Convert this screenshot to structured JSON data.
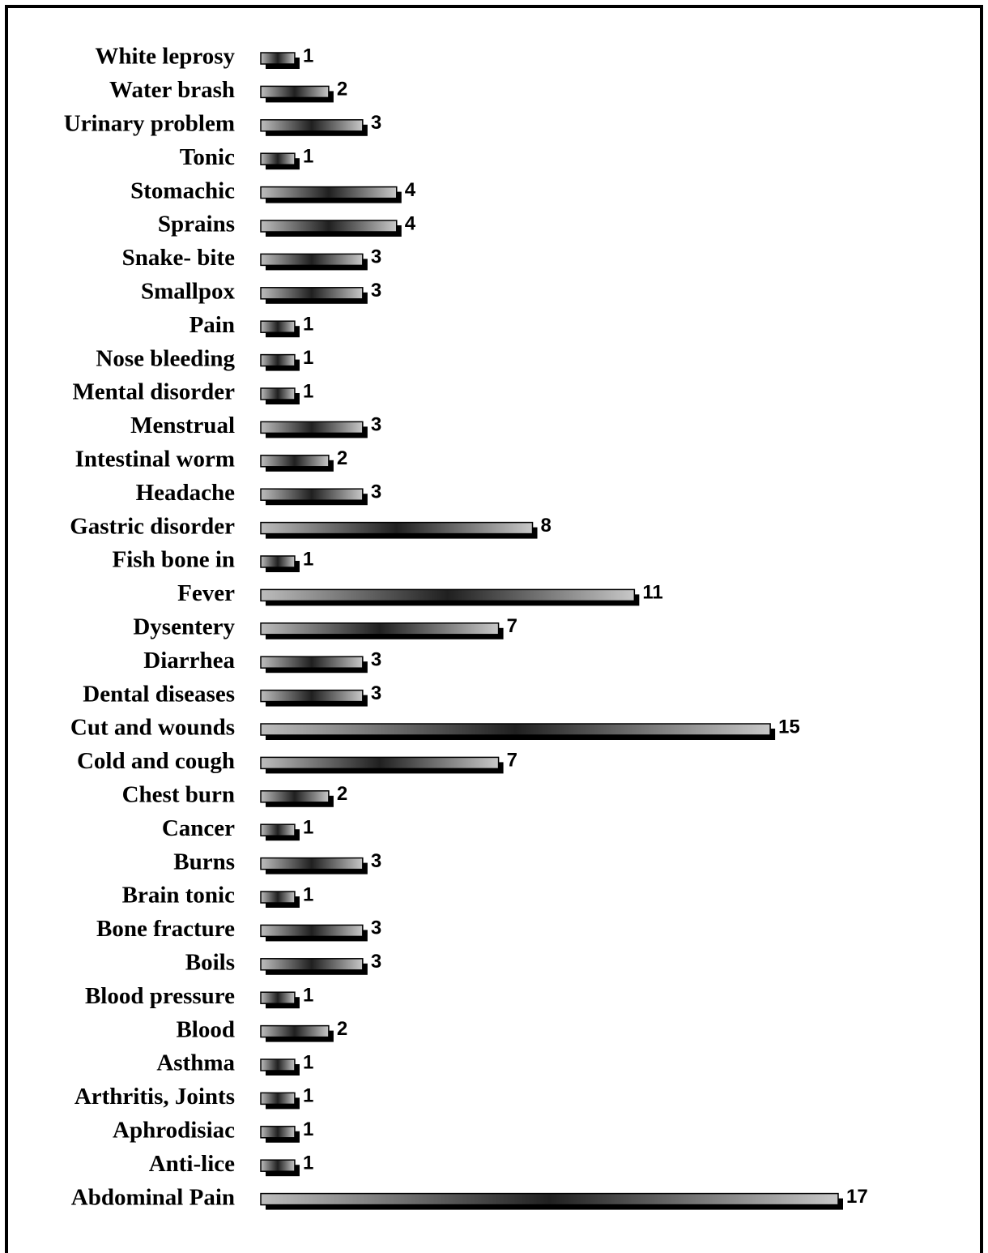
{
  "chart_data": {
    "type": "bar",
    "categories": [
      "White leprosy",
      "Water brash",
      "Urinary problem",
      "Tonic",
      "Stomachic",
      "Sprains",
      "Snake- bite",
      "Smallpox",
      "Pain",
      "Nose bleeding",
      "Mental disorder",
      "Menstrual",
      "Intestinal worm",
      "Headache",
      "Gastric disorder",
      "Fish bone in",
      "Fever",
      "Dysentery",
      "Diarrhea",
      "Dental diseases",
      "Cut and wounds",
      "Cold and cough",
      "Chest burn",
      "Cancer",
      "Burns",
      "Brain tonic",
      "Bone fracture",
      "Boils",
      "Blood pressure",
      "Blood",
      "Asthma",
      "Arthritis, Joints",
      "Aphrodisiac",
      "Anti-lice",
      "Abdominal Pain"
    ],
    "values": [
      1,
      2,
      3,
      1,
      4,
      4,
      3,
      3,
      1,
      1,
      1,
      3,
      2,
      3,
      8,
      1,
      11,
      7,
      3,
      3,
      15,
      7,
      2,
      1,
      3,
      1,
      3,
      3,
      1,
      2,
      1,
      1,
      1,
      1,
      17
    ],
    "color": "#8c8c8c"
  }
}
